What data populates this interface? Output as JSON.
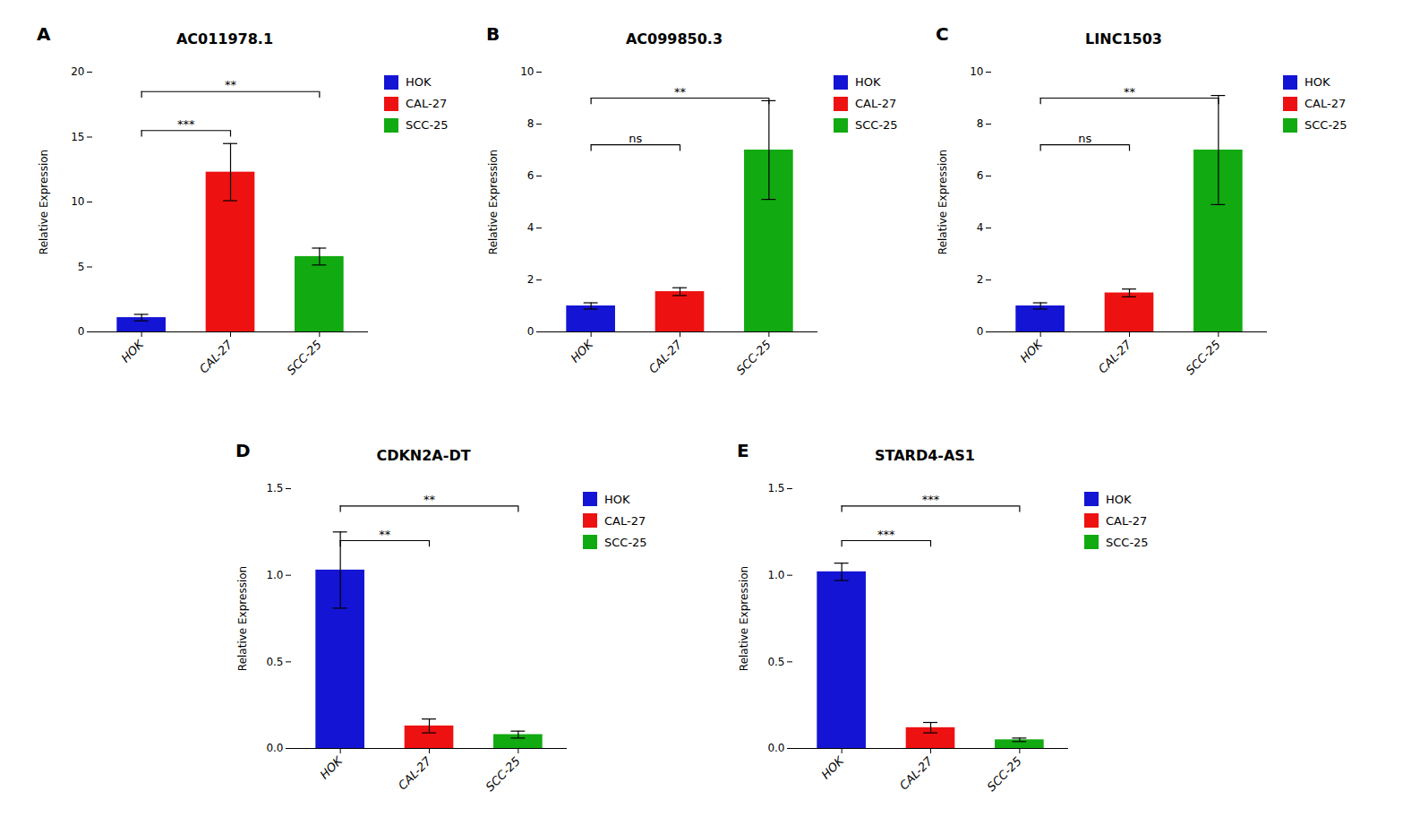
{
  "chart_data": [
    {
      "type": "bar",
      "panel_label": "A",
      "title": "AC011978.1",
      "ylabel": "Relative Expression",
      "categories": [
        "HOK",
        "CAL-27",
        "SCC-25"
      ],
      "values": [
        1.1,
        12.3,
        5.8
      ],
      "errors": [
        0.25,
        2.2,
        0.65
      ],
      "colors": [
        "#1414d4",
        "#ee1111",
        "#11aa11"
      ],
      "ylim": [
        0,
        20
      ],
      "yticks": [
        0,
        5,
        10,
        15,
        20
      ],
      "grid": false,
      "significance": [
        {
          "from": "HOK",
          "to": "CAL-27",
          "label": "***",
          "y": 15.5
        },
        {
          "from": "HOK",
          "to": "SCC-25",
          "label": "**",
          "y": 18.5
        }
      ],
      "legend": "right",
      "legend_labels": [
        "HOK",
        "CAL-27",
        "SCC-25"
      ],
      "legend_colors": [
        "#1414d4",
        "#ee1111",
        "#11aa11"
      ]
    },
    {
      "type": "bar",
      "panel_label": "B",
      "title": "AC099850.3",
      "ylabel": "Relative Expression",
      "categories": [
        "HOK",
        "CAL-27",
        "SCC-25"
      ],
      "values": [
        1.0,
        1.55,
        7.0
      ],
      "errors": [
        0.12,
        0.15,
        1.9
      ],
      "colors": [
        "#1414d4",
        "#ee1111",
        "#11aa11"
      ],
      "ylim": [
        0,
        10
      ],
      "yticks": [
        0,
        2,
        4,
        6,
        8,
        10
      ],
      "grid": false,
      "significance": [
        {
          "from": "HOK",
          "to": "CAL-27",
          "label": "ns",
          "y": 7.2
        },
        {
          "from": "HOK",
          "to": "SCC-25",
          "label": "**",
          "y": 9.0
        }
      ],
      "legend": "right",
      "legend_labels": [
        "HOK",
        "CAL-27",
        "SCC-25"
      ],
      "legend_colors": [
        "#1414d4",
        "#ee1111",
        "#11aa11"
      ]
    },
    {
      "type": "bar",
      "panel_label": "C",
      "title": "LINC1503",
      "ylabel": "Relative Expression",
      "categories": [
        "HOK",
        "CAL-27",
        "SCC-25"
      ],
      "values": [
        1.0,
        1.5,
        7.0
      ],
      "errors": [
        0.12,
        0.15,
        2.1
      ],
      "colors": [
        "#1414d4",
        "#ee1111",
        "#11aa11"
      ],
      "ylim": [
        0,
        10
      ],
      "yticks": [
        0,
        2,
        4,
        6,
        8,
        10
      ],
      "grid": false,
      "significance": [
        {
          "from": "HOK",
          "to": "CAL-27",
          "label": "ns",
          "y": 7.2
        },
        {
          "from": "HOK",
          "to": "SCC-25",
          "label": "**",
          "y": 9.0
        }
      ],
      "legend": "right",
      "legend_labels": [
        "HOK",
        "CAL-27",
        "SCC-25"
      ],
      "legend_colors": [
        "#1414d4",
        "#ee1111",
        "#11aa11"
      ]
    },
    {
      "type": "bar",
      "panel_label": "D",
      "title": "CDKN2A-DT",
      "ylabel": "Relative Expression",
      "categories": [
        "HOK",
        "CAL-27",
        "SCC-25"
      ],
      "values": [
        1.03,
        0.13,
        0.08
      ],
      "errors": [
        0.22,
        0.04,
        0.02
      ],
      "colors": [
        "#1414d4",
        "#ee1111",
        "#11aa11"
      ],
      "ylim": [
        0,
        1.5
      ],
      "yticks": [
        {
          "value": 0,
          "label": "0.0"
        },
        0.5,
        {
          "value": 1.0,
          "label": "1.0"
        },
        1.5
      ],
      "grid": false,
      "significance": [
        {
          "from": "HOK",
          "to": "CAL-27",
          "label": "**",
          "y": 1.2
        },
        {
          "from": "HOK",
          "to": "SCC-25",
          "label": "**",
          "y": 1.4
        }
      ],
      "legend": "right",
      "legend_labels": [
        "HOK",
        "CAL-27",
        "SCC-25"
      ],
      "legend_colors": [
        "#1414d4",
        "#ee1111",
        "#11aa11"
      ]
    },
    {
      "type": "bar",
      "panel_label": "E",
      "title": "STARD4-AS1",
      "ylabel": "Relative Expression",
      "categories": [
        "HOK",
        "CAL-27",
        "SCC-25"
      ],
      "values": [
        1.02,
        0.12,
        0.05
      ],
      "errors": [
        0.05,
        0.03,
        0.01
      ],
      "colors": [
        "#1414d4",
        "#ee1111",
        "#11aa11"
      ],
      "ylim": [
        0,
        1.5
      ],
      "yticks": [
        {
          "value": 0,
          "label": "0.0"
        },
        0.5,
        {
          "value": 1.0,
          "label": "1.0"
        },
        1.5
      ],
      "grid": false,
      "significance": [
        {
          "from": "HOK",
          "to": "CAL-27",
          "label": "***",
          "y": 1.2
        },
        {
          "from": "HOK",
          "to": "SCC-25",
          "label": "***",
          "y": 1.4
        }
      ],
      "legend": "right",
      "legend_labels": [
        "HOK",
        "CAL-27",
        "SCC-25"
      ],
      "legend_colors": [
        "#1414d4",
        "#ee1111",
        "#11aa11"
      ]
    }
  ]
}
